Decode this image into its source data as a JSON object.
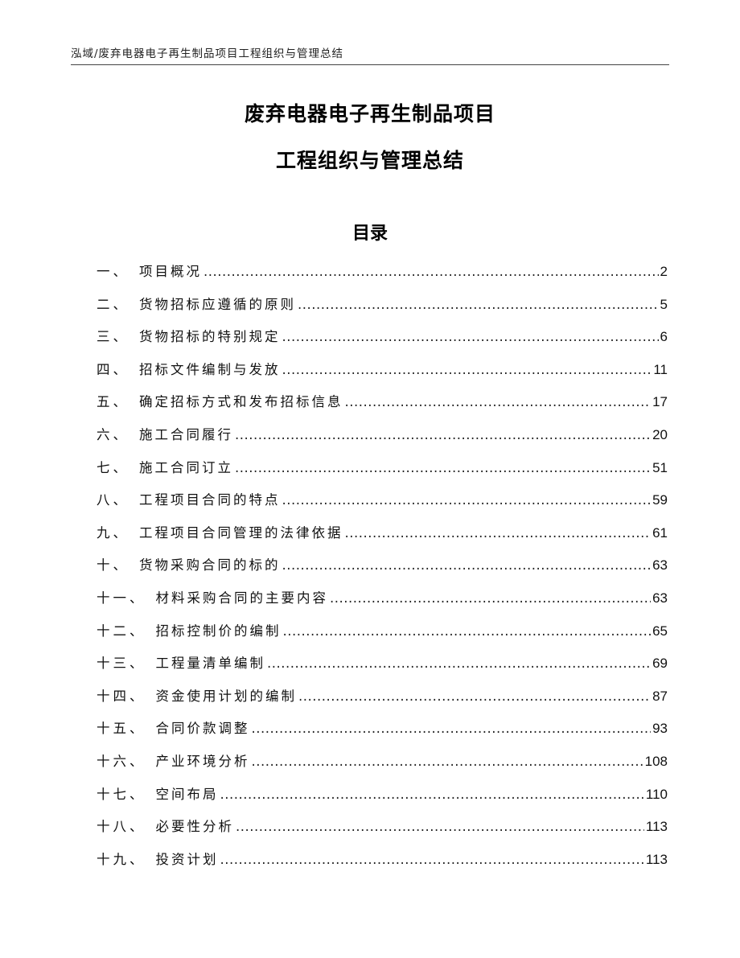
{
  "header": {
    "running_title": "泓域/废弃电器电子再生制品项目工程组织与管理总结"
  },
  "title": {
    "line1": "废弃电器电子再生制品项目",
    "line2": "工程组织与管理总结"
  },
  "toc": {
    "heading": "目录",
    "entries": [
      {
        "num": "一、",
        "label": "项目概况",
        "page": "2"
      },
      {
        "num": "二、",
        "label": "货物招标应遵循的原则",
        "page": "5"
      },
      {
        "num": "三、",
        "label": "货物招标的特别规定",
        "page": "6"
      },
      {
        "num": "四、",
        "label": "招标文件编制与发放",
        "page": "11"
      },
      {
        "num": "五、",
        "label": "确定招标方式和发布招标信息",
        "page": "17"
      },
      {
        "num": "六、",
        "label": "施工合同履行",
        "page": "20"
      },
      {
        "num": "七、",
        "label": "施工合同订立",
        "page": "51"
      },
      {
        "num": "八、",
        "label": "工程项目合同的特点",
        "page": "59"
      },
      {
        "num": "九、",
        "label": "工程项目合同管理的法律依据",
        "page": "61"
      },
      {
        "num": "十、",
        "label": "货物采购合同的标的",
        "page": "63"
      },
      {
        "num": "十一、",
        "label": "材料采购合同的主要内容",
        "page": "63"
      },
      {
        "num": "十二、",
        "label": "招标控制价的编制",
        "page": "65"
      },
      {
        "num": "十三、",
        "label": "工程量清单编制",
        "page": "69"
      },
      {
        "num": "十四、",
        "label": "资金使用计划的编制",
        "page": "87"
      },
      {
        "num": "十五、",
        "label": "合同价款调整",
        "page": "93"
      },
      {
        "num": "十六、",
        "label": "产业环境分析",
        "page": "108"
      },
      {
        "num": "十七、",
        "label": "空间布局",
        "page": "110"
      },
      {
        "num": "十八、",
        "label": "必要性分析",
        "page": "113"
      },
      {
        "num": "十九、",
        "label": "投资计划",
        "page": "113"
      }
    ]
  }
}
